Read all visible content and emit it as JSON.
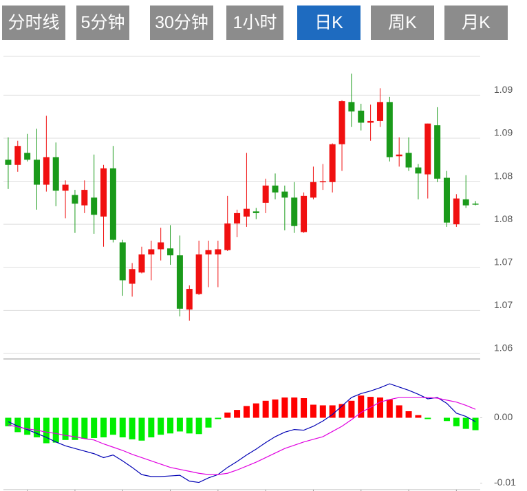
{
  "tabs": [
    {
      "label": "分时线"
    },
    {
      "label": "5分钟"
    },
    {
      "label": "30分钟"
    },
    {
      "label": "1小时"
    },
    {
      "label": "日K",
      "selected": true
    },
    {
      "label": "周K"
    },
    {
      "label": "月K"
    }
  ],
  "chart_data": [
    {
      "type": "candlestick",
      "up_color": "#f01010",
      "down_color": "#1a9a1a",
      "grid": true,
      "ylim": [
        1.06,
        1.0945
      ],
      "yticks": [
        {
          "value": 1.06,
          "label": "1.06"
        },
        {
          "value": 1.065,
          "label": "1.07"
        },
        {
          "value": 1.07,
          "label": "1.07"
        },
        {
          "value": 1.075,
          "label": "1.08"
        },
        {
          "value": 1.08,
          "label": "1.08"
        },
        {
          "value": 1.085,
          "label": "1.09"
        },
        {
          "value": 1.09,
          "label": "1.09"
        }
      ],
      "open": [
        1.0825,
        1.0819,
        1.0833,
        1.0825,
        1.0796,
        1.0828,
        1.0789,
        1.0784,
        1.0772,
        1.0781,
        1.0759,
        1.0815,
        1.0729,
        1.0681,
        1.0694,
        1.0715,
        1.0721,
        1.0722,
        1.0714,
        1.0651,
        1.0669,
        1.0715,
        1.0715,
        1.072,
        1.0751,
        1.0759,
        1.0765,
        1.0775,
        1.0795,
        1.0788,
        1.0781,
        1.0741,
        1.0781,
        1.0799,
        1.0799,
        1.0843,
        1.0892,
        1.0882,
        1.0868,
        1.087,
        1.0892,
        1.0829,
        1.0833,
        1.0816,
        1.0808,
        1.0865,
        1.0804,
        1.075,
        1.0779,
        1.0774
      ],
      "high": [
        1.0851,
        1.0847,
        1.0855,
        1.0861,
        1.0876,
        1.0845,
        1.0801,
        1.079,
        1.0801,
        1.0831,
        1.0819,
        1.0841,
        1.0732,
        1.0705,
        1.0724,
        1.0731,
        1.0746,
        1.0749,
        1.0737,
        1.0679,
        1.0731,
        1.0731,
        1.0731,
        1.0783,
        1.0767,
        1.0833,
        1.0769,
        1.0803,
        1.0809,
        1.0795,
        1.0799,
        1.0787,
        1.0817,
        1.082,
        1.0844,
        1.0894,
        1.0925,
        1.089,
        1.0889,
        1.0908,
        1.0898,
        1.0851,
        1.0851,
        1.082,
        1.0867,
        1.0886,
        1.0812,
        1.0785,
        1.0807,
        1.0777
      ],
      "low": [
        1.0791,
        1.0811,
        1.0823,
        1.0767,
        1.0788,
        1.0771,
        1.0757,
        1.074,
        1.0763,
        1.0739,
        1.0724,
        1.0729,
        1.0667,
        1.0666,
        1.0693,
        1.0685,
        1.0708,
        1.0703,
        1.0643,
        1.0638,
        1.0668,
        1.0677,
        1.0677,
        1.0719,
        1.0735,
        1.0747,
        1.0756,
        1.0763,
        1.0779,
        1.0743,
        1.074,
        1.074,
        1.0779,
        1.079,
        1.0787,
        1.0812,
        1.0863,
        1.0859,
        1.0847,
        1.0863,
        1.0823,
        1.0817,
        1.0812,
        1.0779,
        1.078,
        1.0799,
        1.0747,
        1.0747,
        1.0769,
        1.0772
      ],
      "close": [
        1.0819,
        1.0841,
        1.0825,
        1.0796,
        1.0828,
        1.0789,
        1.0796,
        1.0774,
        1.079,
        1.0761,
        1.0815,
        1.0732,
        1.0685,
        1.0698,
        1.0715,
        1.0721,
        1.0729,
        1.0714,
        1.0652,
        1.0675,
        1.0715,
        1.072,
        1.0721,
        1.0751,
        1.0763,
        1.0768,
        1.0763,
        1.0795,
        1.0787,
        1.0781,
        1.0748,
        1.0783,
        1.0799,
        1.08,
        1.0843,
        1.0893,
        1.0881,
        1.0868,
        1.087,
        1.0892,
        1.0828,
        1.0831,
        1.0816,
        1.0809,
        1.0867,
        1.0803,
        1.0752,
        1.078,
        1.0772,
        1.0773
      ]
    },
    {
      "type": "macd",
      "ylim": [
        -0.011,
        0.009
      ],
      "yticks": [
        {
          "value": 0,
          "label": "0.00"
        },
        {
          "value": -0.01,
          "label": "-0.01"
        }
      ],
      "series": [
        {
          "kind": "bar",
          "up_color": "#ff0000",
          "down_color": "#00ee00",
          "values": [
            -0.0013,
            -0.0022,
            -0.0026,
            -0.003,
            -0.0039,
            -0.0038,
            -0.0034,
            -0.0034,
            -0.0032,
            -0.0031,
            -0.003,
            -0.0026,
            -0.003,
            -0.0033,
            -0.0035,
            -0.003,
            -0.0026,
            -0.0024,
            -0.0021,
            -0.0024,
            -0.0025,
            -0.0015,
            -0.0002,
            0.0008,
            0.0012,
            0.0018,
            0.0022,
            0.0026,
            0.0028,
            0.0031,
            0.0031,
            0.003,
            0.002,
            0.0019,
            0.0019,
            0.0021,
            0.0026,
            0.0034,
            0.0032,
            0.0031,
            0.0028,
            0.0019,
            0.001,
            0.0004,
            -0.0002,
            0,
            -0.0005,
            -0.0013,
            -0.0017,
            -0.0019
          ]
        },
        {
          "kind": "line",
          "color": "#0000b4",
          "values": [
            -0.0006,
            -0.0013,
            -0.0018,
            -0.0024,
            -0.003,
            -0.0037,
            -0.0043,
            -0.0047,
            -0.0051,
            -0.0055,
            -0.0061,
            -0.0057,
            -0.0066,
            -0.0076,
            -0.0087,
            -0.009,
            -0.009,
            -0.0089,
            -0.0088,
            -0.0097,
            -0.0099,
            -0.0092,
            -0.0087,
            -0.0076,
            -0.0067,
            -0.0057,
            -0.0048,
            -0.0038,
            -0.0029,
            -0.0022,
            -0.0018,
            -0.0019,
            -0.0013,
            -0.0005,
            0.0005,
            0.0018,
            0.0031,
            0.0037,
            0.0041,
            0.0046,
            0.0052,
            0.0047,
            0.0042,
            0.0036,
            0.0029,
            0.0031,
            0.0022,
            0.0007,
            0.0002,
            -0.0006
          ]
        },
        {
          "kind": "line",
          "color": "#e000e0",
          "values": [
            -0.0011,
            -0.0014,
            -0.0017,
            -0.0019,
            -0.0022,
            -0.0024,
            -0.0027,
            -0.0029,
            -0.0032,
            -0.0034,
            -0.004,
            -0.0045,
            -0.005,
            -0.0056,
            -0.0061,
            -0.0066,
            -0.0071,
            -0.0076,
            -0.0079,
            -0.0082,
            -0.0085,
            -0.0087,
            -0.0087,
            -0.0085,
            -0.008,
            -0.0074,
            -0.0068,
            -0.0061,
            -0.0054,
            -0.0047,
            -0.0042,
            -0.0037,
            -0.0033,
            -0.0029,
            -0.0021,
            -0.0013,
            -0.0003,
            0.0008,
            0.0016,
            0.0024,
            0.0028,
            0.0031,
            0.0031,
            0.0031,
            0.0031,
            0.003,
            0.0027,
            0.0024,
            0.0019,
            0.0013
          ]
        }
      ]
    }
  ]
}
